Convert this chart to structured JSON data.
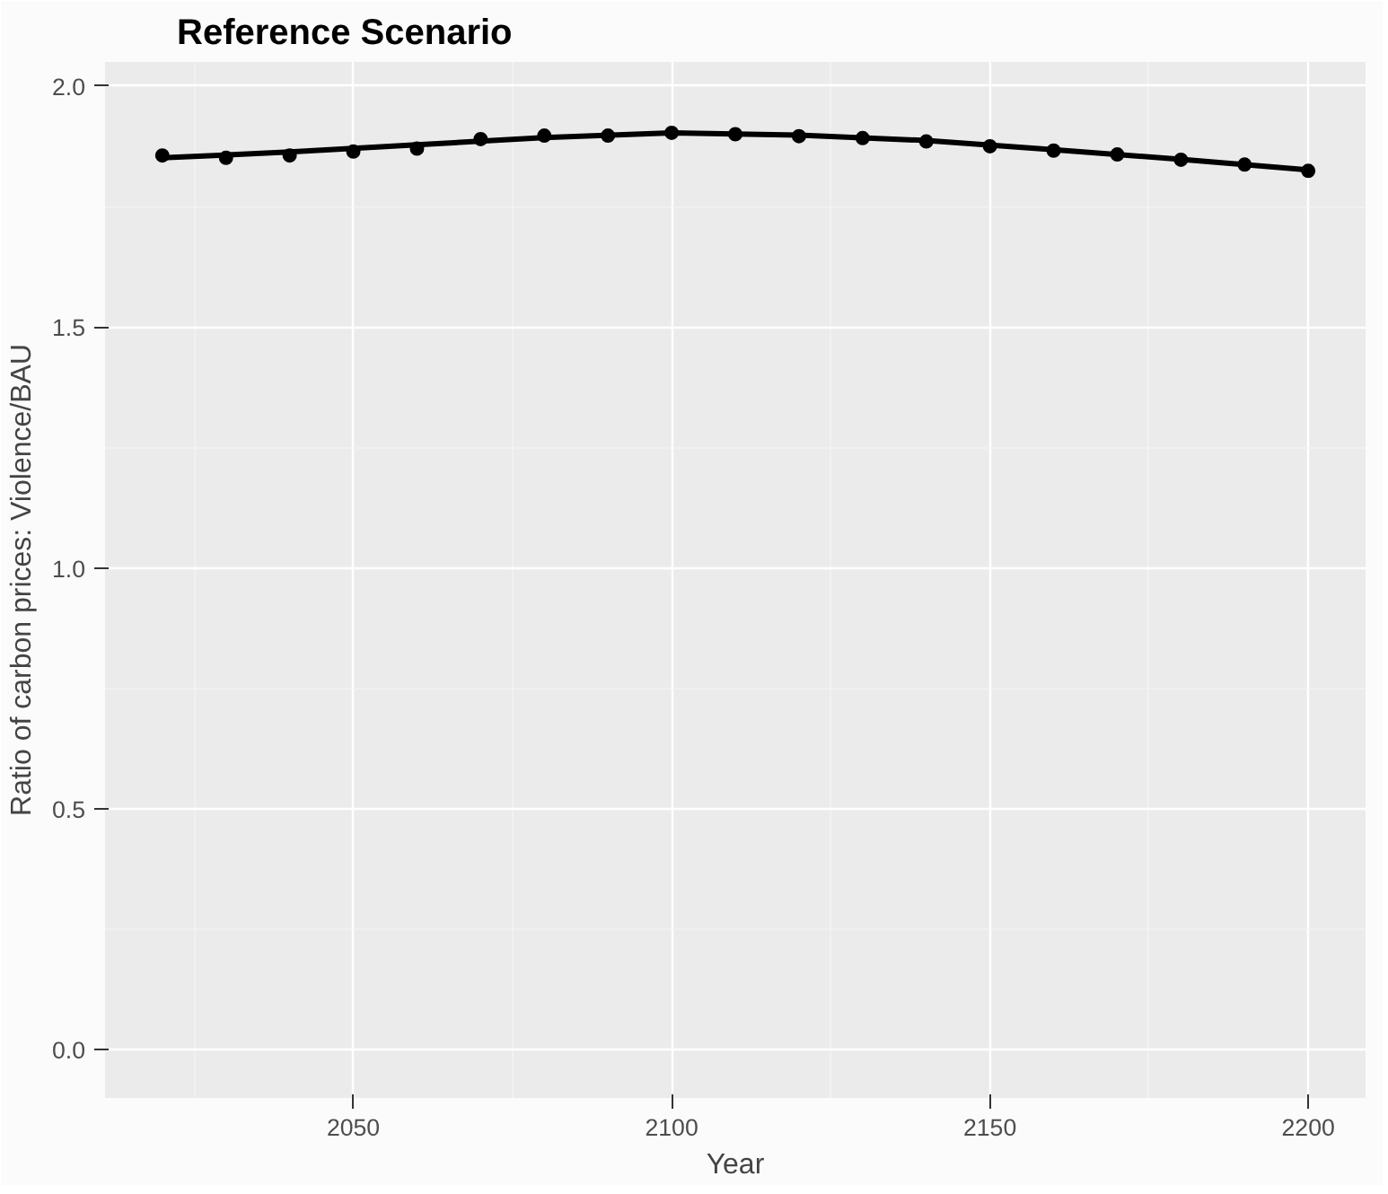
{
  "chart_data": {
    "type": "scatter",
    "title": "Reference Scenario",
    "xlabel": "Year",
    "ylabel": "Ratio of carbon prices: Violence/BAU",
    "x": [
      2020,
      2030,
      2040,
      2050,
      2060,
      2070,
      2080,
      2090,
      2100,
      2110,
      2120,
      2130,
      2140,
      2150,
      2160,
      2170,
      2180,
      2190,
      2200
    ],
    "series": [
      {
        "color": "#000000",
        "marker": "circle",
        "values": [
          1.856,
          1.851,
          1.856,
          1.864,
          1.87,
          1.89,
          1.897,
          1.897,
          1.903,
          1.9,
          1.896,
          1.892,
          1.885,
          1.875,
          1.866,
          1.858,
          1.847,
          1.837,
          1.824
        ]
      },
      {
        "type": "line",
        "color": "#000000",
        "line_style": "solid",
        "x": [
          2020,
          2040,
          2060,
          2080,
          2100,
          2120,
          2140,
          2160,
          2180,
          2200
        ],
        "values": [
          1.851,
          1.863,
          1.878,
          1.893,
          1.903,
          1.898,
          1.887,
          1.868,
          1.848,
          1.826
        ]
      }
    ],
    "xlim": [
      2011,
      2209
    ],
    "xticks": [
      2050,
      2100,
      2150,
      2200
    ],
    "ylim": [
      -0.1,
      2.05
    ],
    "yticks": [
      {
        "value": 0,
        "label": "0.0"
      },
      {
        "value": 0.5,
        "label": "0.5"
      },
      {
        "value": 1,
        "label": "1.0"
      },
      {
        "value": 1.5,
        "label": "1.5"
      },
      {
        "value": 2,
        "label": "2.0"
      }
    ],
    "grid": true
  }
}
